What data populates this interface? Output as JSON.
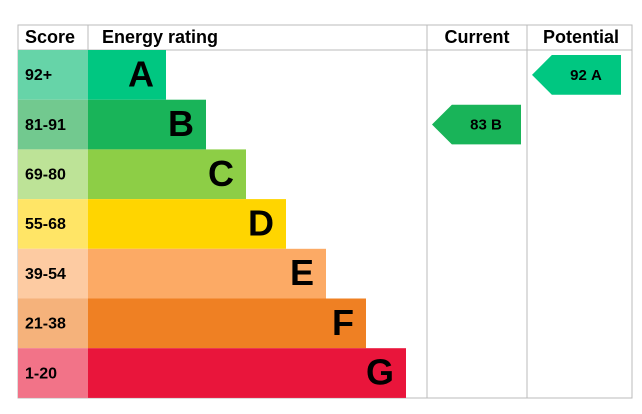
{
  "header": {
    "score": "Score",
    "rating": "Energy rating",
    "current": "Current",
    "potential": "Potential"
  },
  "bands": [
    {
      "score": "92+",
      "letter": "A",
      "color": "#00c781",
      "light": "#66d4a8"
    },
    {
      "score": "81-91",
      "letter": "B",
      "color": "#19b459",
      "light": "#72c98f"
    },
    {
      "score": "69-80",
      "letter": "C",
      "color": "#8dce46",
      "light": "#bde397"
    },
    {
      "score": "55-68",
      "letter": "D",
      "color": "#ffd500",
      "light": "#ffe566"
    },
    {
      "score": "39-54",
      "letter": "E",
      "color": "#fcaa65",
      "light": "#fdcba2"
    },
    {
      "score": "21-38",
      "letter": "F",
      "color": "#ef8023",
      "light": "#f5b27b"
    },
    {
      "score": "1-20",
      "letter": "G",
      "color": "#e9153b",
      "light": "#f27388"
    }
  ],
  "current": {
    "value": 83,
    "letter": "B"
  },
  "potential": {
    "value": 92,
    "letter": "A"
  }
}
